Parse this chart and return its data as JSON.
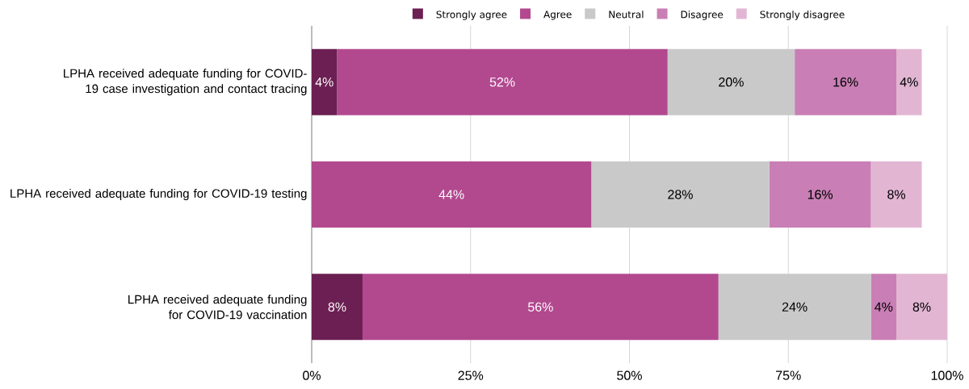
{
  "chart_data": {
    "type": "bar",
    "orientation": "horizontal",
    "stacked": true,
    "categories": [
      "LPHA received adequate funding for COVID-19 case investigation and contact tracing",
      "LPHA received adequate funding for COVID-19 testing",
      "LPHA received adequate funding for COVID-19 vaccination"
    ],
    "series": [
      {
        "name": "Strongly agree",
        "color": "#6b1f52",
        "values": [
          4,
          null,
          8
        ],
        "value_labels": [
          "4%",
          null,
          "8%"
        ]
      },
      {
        "name": "Agree",
        "color": "#b2498f",
        "values": [
          52,
          44,
          56
        ],
        "value_labels": [
          "52%",
          "44%",
          "56%"
        ]
      },
      {
        "name": "Neutral",
        "color": "#c9c9c9",
        "values": [
          20,
          28,
          24
        ],
        "value_labels": [
          "20%",
          "28%",
          "24%"
        ]
      },
      {
        "name": "Disagree",
        "color": "#c97fb5",
        "values": [
          16,
          16,
          4
        ],
        "value_labels": [
          "16%",
          "16%",
          "4%"
        ]
      },
      {
        "name": "Strongly disagree",
        "color": "#e2b6d3",
        "values": [
          4,
          8,
          8
        ],
        "value_labels": [
          "4%",
          "8%",
          "8%"
        ]
      }
    ],
    "xlim": [
      0,
      100
    ],
    "xticks": [
      {
        "value": 0,
        "label": "0%"
      },
      {
        "value": 25,
        "label": "25%"
      },
      {
        "value": 50,
        "label": "50%"
      },
      {
        "value": 75,
        "label": "75%"
      },
      {
        "value": 100,
        "label": "100%"
      }
    ],
    "grid": "x",
    "legend": "top"
  }
}
